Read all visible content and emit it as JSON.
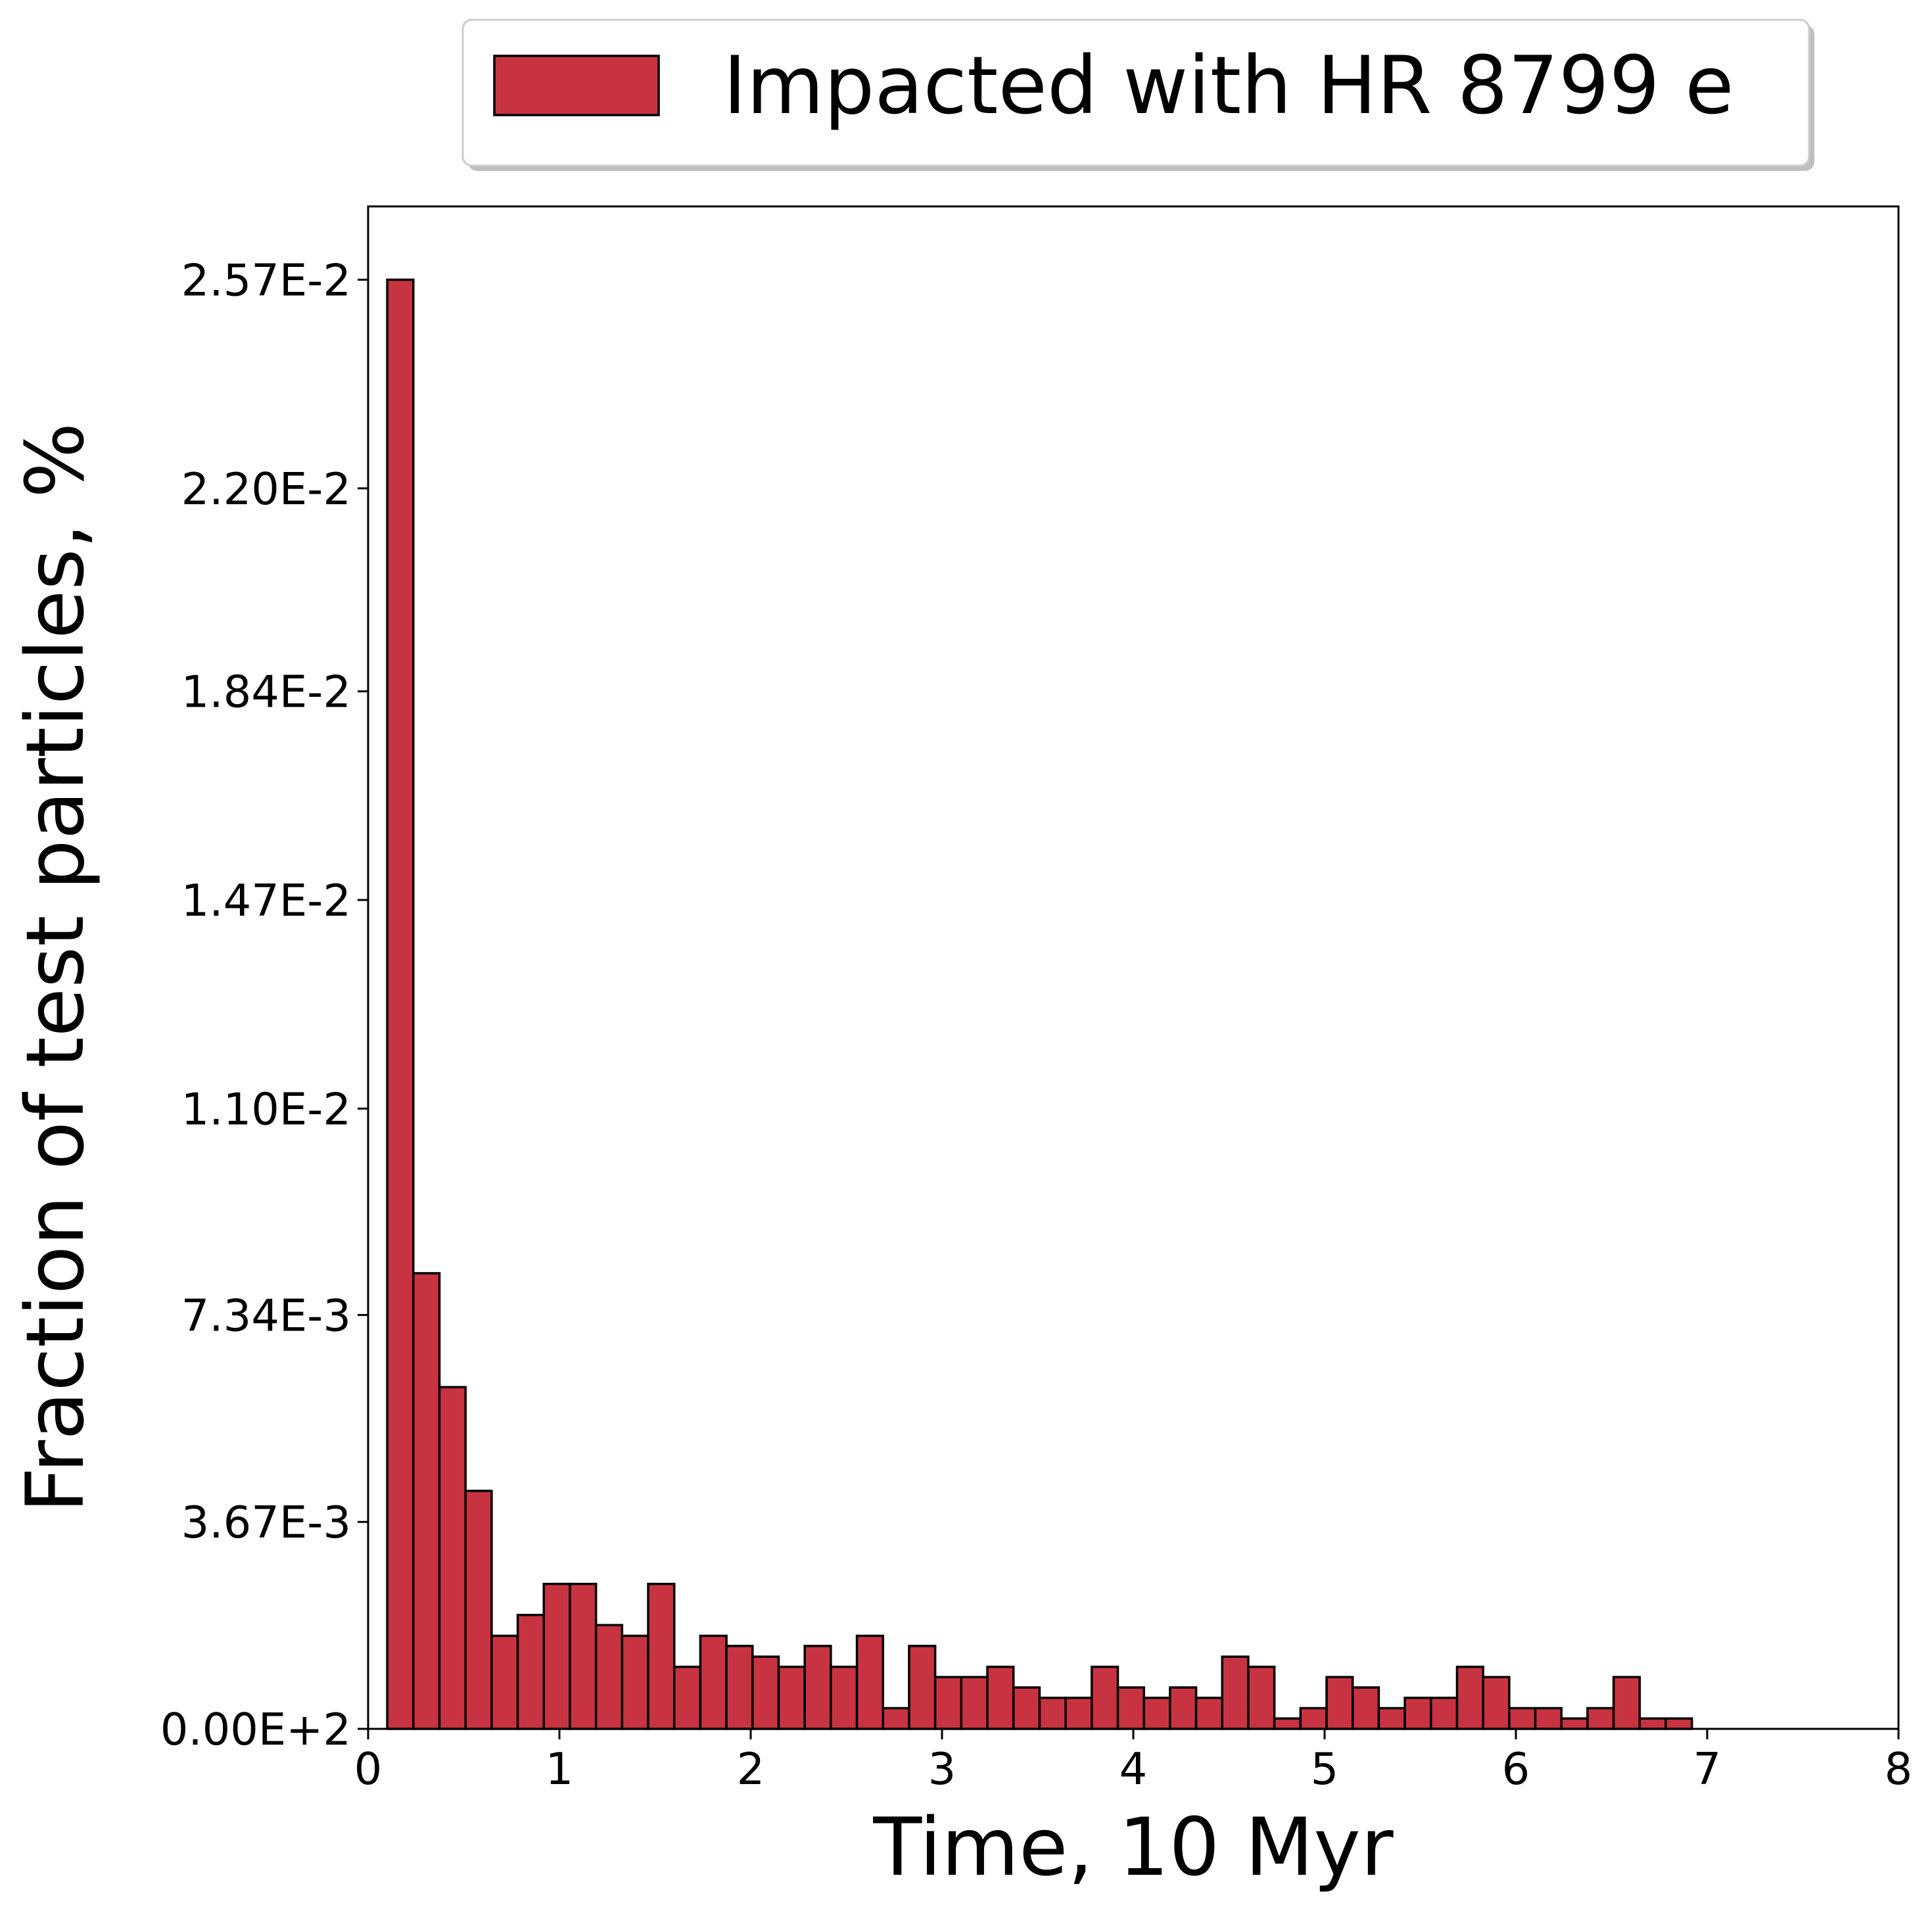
{
  "colors": {
    "bar_fill": "#c83341",
    "bar_edge": "#000000",
    "axis": "#000000",
    "background": "#ffffff"
  },
  "chart_data": {
    "type": "bar",
    "xlabel": "Time, 10 Myr",
    "ylabel": "Fraction of test particles, %",
    "xlim": [
      0,
      8
    ],
    "ylim": [
      0,
      0.027
    ],
    "grid": false,
    "legend_position": "top-center, above plot",
    "x_ticks": [
      0,
      1,
      2,
      3,
      4,
      5,
      6,
      7,
      8
    ],
    "x_tick_labels": [
      "0",
      "1",
      "2",
      "3",
      "4",
      "5",
      "6",
      "7",
      "8"
    ],
    "y_ticks": [
      0,
      0.00367,
      0.00734,
      0.011,
      0.0147,
      0.0184,
      0.022,
      0.0257
    ],
    "y_tick_labels": [
      "0.00E+2",
      "3.67E-3",
      "7.34E-3",
      "1.10E-2",
      "1.47E-2",
      "1.84E-2",
      "2.20E-2",
      "2.57E-2"
    ],
    "bin_width": 0.1364,
    "series": [
      {
        "name": "Impacted with HR 8799 e",
        "bin_start": [
          0.1,
          0.2364,
          0.3728,
          0.5092,
          0.6456,
          0.782,
          0.9184,
          1.0548,
          1.1912,
          1.3276,
          1.464,
          1.6004,
          1.7368,
          1.8732,
          2.0096,
          2.146,
          2.2824,
          2.4188,
          2.5552,
          2.6916,
          2.828,
          2.9644,
          3.1008,
          3.2372,
          3.3736,
          3.51,
          3.6464,
          3.7828,
          3.9192,
          4.0556,
          4.192,
          4.3284,
          4.4648,
          4.6012,
          4.7376,
          4.874,
          5.0104,
          5.1468,
          5.2832,
          5.4196,
          5.556,
          5.6924,
          5.8288,
          5.9652,
          6.1016,
          6.238,
          6.3744,
          6.5108,
          6.6472,
          6.7836
        ],
        "values": [
          0.0257,
          0.00808,
          0.00606,
          0.00422,
          0.00165,
          0.00202,
          0.00257,
          0.00257,
          0.00184,
          0.00165,
          0.00257,
          0.0011,
          0.00165,
          0.00147,
          0.00128,
          0.0011,
          0.00147,
          0.0011,
          0.00165,
          0.000367,
          0.00147,
          0.000918,
          0.000918,
          0.0011,
          0.000734,
          0.00055,
          0.00055,
          0.0011,
          0.000734,
          0.00055,
          0.000734,
          0.00055,
          0.00128,
          0.0011,
          0.000184,
          0.000367,
          0.000918,
          0.000734,
          0.000367,
          0.00055,
          0.00055,
          0.0011,
          0.000918,
          0.000367,
          0.000367,
          0.000184,
          0.000367,
          0.000918,
          0.000184,
          0.000184
        ]
      }
    ]
  }
}
